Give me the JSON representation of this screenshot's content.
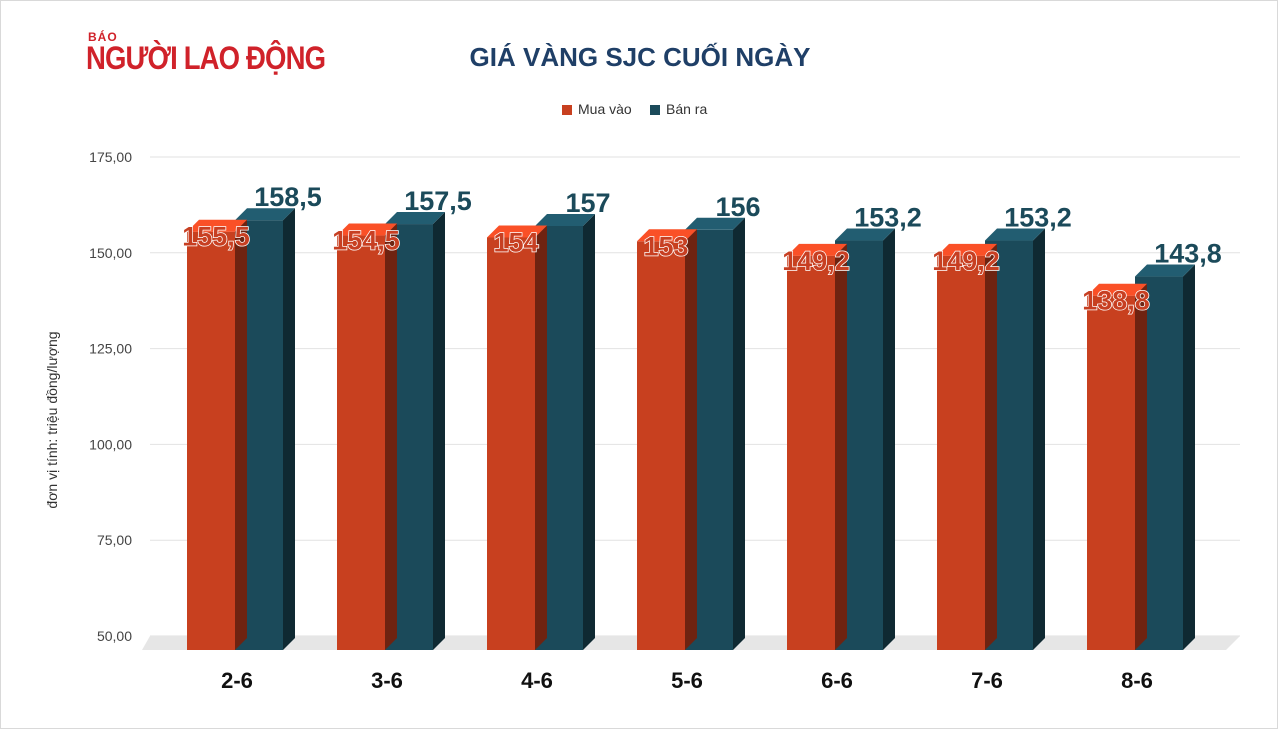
{
  "logo": {
    "small": "BÁO",
    "big": "NGƯỜI LAO ĐỘNG"
  },
  "chart_data": {
    "type": "bar",
    "title": "GIÁ VÀNG SJC CUỐI NGÀY",
    "ylabel": "đơn vị tính: triệu đồng/lượng",
    "xlabel": "",
    "categories": [
      "2-6",
      "3-6",
      "4-6",
      "5-6",
      "6-6",
      "7-6",
      "8-6"
    ],
    "series": [
      {
        "name": "Mua vào",
        "color": "#c8401f",
        "values": [
          155.5,
          154.5,
          154,
          153,
          149.2,
          149.2,
          138.8
        ],
        "labels": [
          "155,5",
          "154,5",
          "154",
          "153",
          "149,2",
          "149,2",
          "138,8"
        ]
      },
      {
        "name": "Bán ra",
        "color": "#1b4a5a",
        "values": [
          158.5,
          157.5,
          157,
          156,
          153.2,
          153.2,
          143.8
        ],
        "labels": [
          "158,5",
          "157,5",
          "157",
          "156",
          "153,2",
          "153,2",
          "143,8"
        ]
      }
    ],
    "ylim": [
      50,
      175
    ],
    "yticks": [
      50,
      75,
      100,
      125,
      150,
      175
    ],
    "ytick_labels": [
      "50,00",
      "75,00",
      "100,00",
      "125,00",
      "150,00",
      "175,00"
    ],
    "grid": true,
    "legend": "top-center",
    "style": "3d-column"
  }
}
